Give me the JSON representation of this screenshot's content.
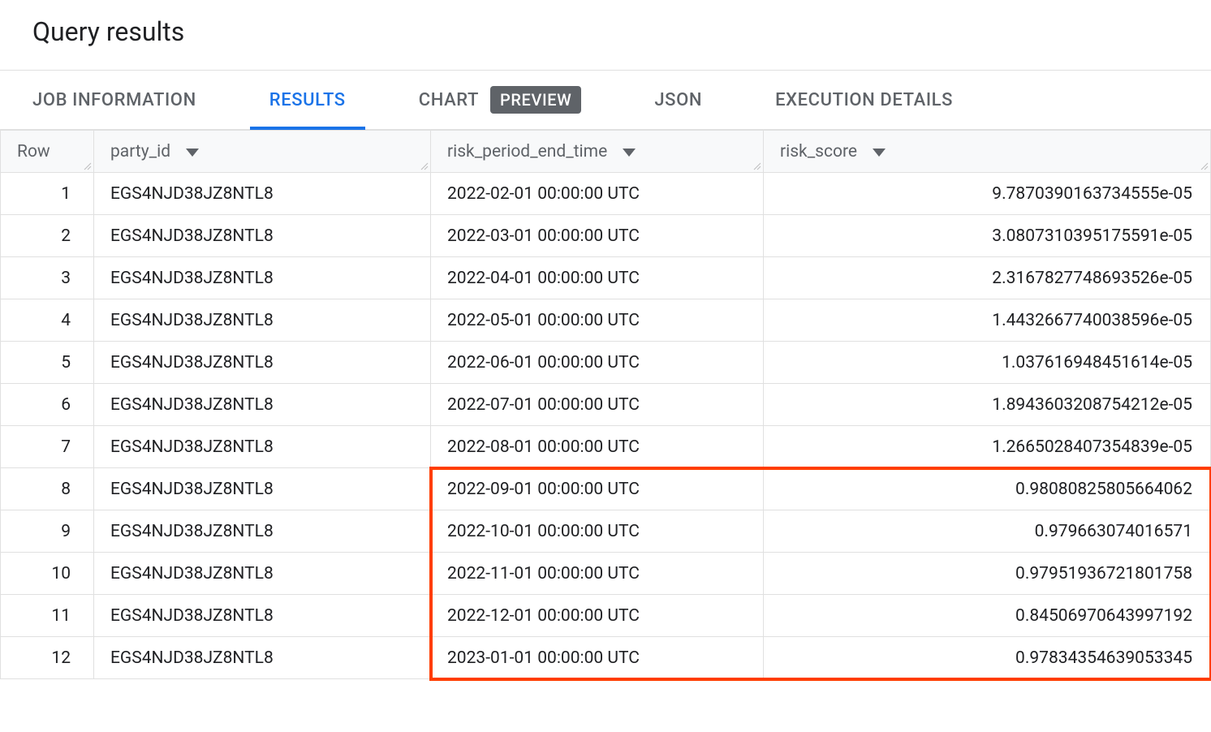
{
  "title": "Query results",
  "tabs": {
    "job_info": {
      "label": "JOB INFORMATION"
    },
    "results": {
      "label": "RESULTS",
      "active": true
    },
    "chart": {
      "label": "CHART",
      "badge": "PREVIEW"
    },
    "json": {
      "label": "JSON"
    },
    "execution": {
      "label": "EXECUTION DETAILS"
    }
  },
  "columns": {
    "row": {
      "label": "Row"
    },
    "party": {
      "label": "party_id"
    },
    "time": {
      "label": "risk_period_end_time"
    },
    "score": {
      "label": "risk_score"
    }
  },
  "rows": [
    {
      "n": "1",
      "party_id": "EGS4NJD38JZ8NTL8",
      "time": "2022-02-01 00:00:00 UTC",
      "score": "9.7870390163734555e-05"
    },
    {
      "n": "2",
      "party_id": "EGS4NJD38JZ8NTL8",
      "time": "2022-03-01 00:00:00 UTC",
      "score": "3.0807310395175591e-05"
    },
    {
      "n": "3",
      "party_id": "EGS4NJD38JZ8NTL8",
      "time": "2022-04-01 00:00:00 UTC",
      "score": "2.3167827748693526e-05"
    },
    {
      "n": "4",
      "party_id": "EGS4NJD38JZ8NTL8",
      "time": "2022-05-01 00:00:00 UTC",
      "score": "1.4432667740038596e-05"
    },
    {
      "n": "5",
      "party_id": "EGS4NJD38JZ8NTL8",
      "time": "2022-06-01 00:00:00 UTC",
      "score": "1.037616948451614e-05"
    },
    {
      "n": "6",
      "party_id": "EGS4NJD38JZ8NTL8",
      "time": "2022-07-01 00:00:00 UTC",
      "score": "1.8943603208754212e-05"
    },
    {
      "n": "7",
      "party_id": "EGS4NJD38JZ8NTL8",
      "time": "2022-08-01 00:00:00 UTC",
      "score": "1.2665028407354839e-05"
    },
    {
      "n": "8",
      "party_id": "EGS4NJD38JZ8NTL8",
      "time": "2022-09-01 00:00:00 UTC",
      "score": "0.98080825805664062"
    },
    {
      "n": "9",
      "party_id": "EGS4NJD38JZ8NTL8",
      "time": "2022-10-01 00:00:00 UTC",
      "score": "0.979663074016571"
    },
    {
      "n": "10",
      "party_id": "EGS4NJD38JZ8NTL8",
      "time": "2022-11-01 00:00:00 UTC",
      "score": "0.97951936721801758"
    },
    {
      "n": "11",
      "party_id": "EGS4NJD38JZ8NTL8",
      "time": "2022-12-01 00:00:00 UTC",
      "score": "0.84506970643997192"
    },
    {
      "n": "12",
      "party_id": "EGS4NJD38JZ8NTL8",
      "time": "2023-01-01 00:00:00 UTC",
      "score": "0.97834354639053345"
    }
  ],
  "highlight": {
    "color": "#ff3d00",
    "start_row_index": 7,
    "end_row_index": 11,
    "start_col": "time",
    "end_col": "score"
  }
}
